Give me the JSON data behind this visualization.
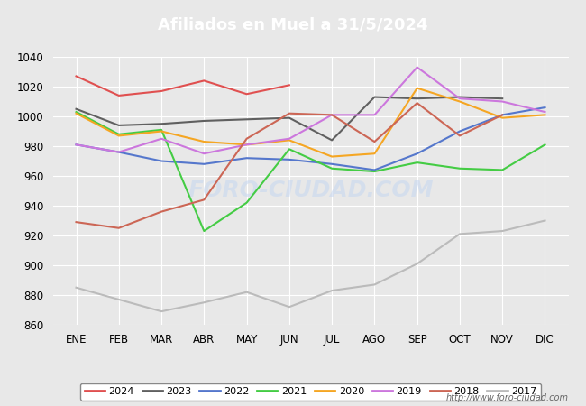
{
  "title": "Afiliados en Muel a 31/5/2024",
  "title_color": "#ffffff",
  "title_bg": "#4472c4",
  "months": [
    "ENE",
    "FEB",
    "MAR",
    "ABR",
    "MAY",
    "JUN",
    "JUL",
    "AGO",
    "SEP",
    "OCT",
    "NOV",
    "DIC"
  ],
  "ylim": [
    860,
    1040
  ],
  "yticks": [
    860,
    880,
    900,
    920,
    940,
    960,
    980,
    1000,
    1020,
    1040
  ],
  "series": {
    "2024": {
      "color": "#e05050",
      "data": [
        1027,
        1014,
        1017,
        1024,
        1015,
        1021,
        null,
        null,
        null,
        null,
        null,
        null
      ]
    },
    "2023": {
      "color": "#606060",
      "data": [
        1005,
        994,
        995,
        997,
        998,
        999,
        984,
        1013,
        1012,
        1013,
        1012,
        null
      ]
    },
    "2022": {
      "color": "#5577cc",
      "data": [
        981,
        976,
        970,
        968,
        972,
        971,
        968,
        964,
        975,
        990,
        1001,
        1006
      ]
    },
    "2021": {
      "color": "#44cc44",
      "data": [
        1003,
        988,
        991,
        923,
        942,
        978,
        965,
        963,
        969,
        965,
        964,
        981
      ]
    },
    "2020": {
      "color": "#f5a623",
      "data": [
        1002,
        987,
        990,
        983,
        981,
        984,
        973,
        975,
        1019,
        1010,
        999,
        1001
      ]
    },
    "2019": {
      "color": "#cc77dd",
      "data": [
        981,
        976,
        985,
        975,
        981,
        985,
        1001,
        1001,
        1033,
        1012,
        1010,
        1003
      ]
    },
    "2018": {
      "color": "#cc6655",
      "data": [
        929,
        925,
        936,
        944,
        985,
        1002,
        1001,
        983,
        1009,
        987,
        1001,
        null
      ]
    },
    "2017": {
      "color": "#bbbbbb",
      "data": [
        885,
        877,
        869,
        875,
        882,
        872,
        883,
        887,
        901,
        921,
        923,
        930
      ]
    }
  },
  "legend_order": [
    "2024",
    "2023",
    "2022",
    "2021",
    "2020",
    "2019",
    "2018",
    "2017"
  ],
  "fig_bg": "#e8e8e8",
  "plot_bg": "#e8e8e8",
  "grid_color": "#ffffff",
  "footer_url": "http://www.foro-ciudad.com"
}
